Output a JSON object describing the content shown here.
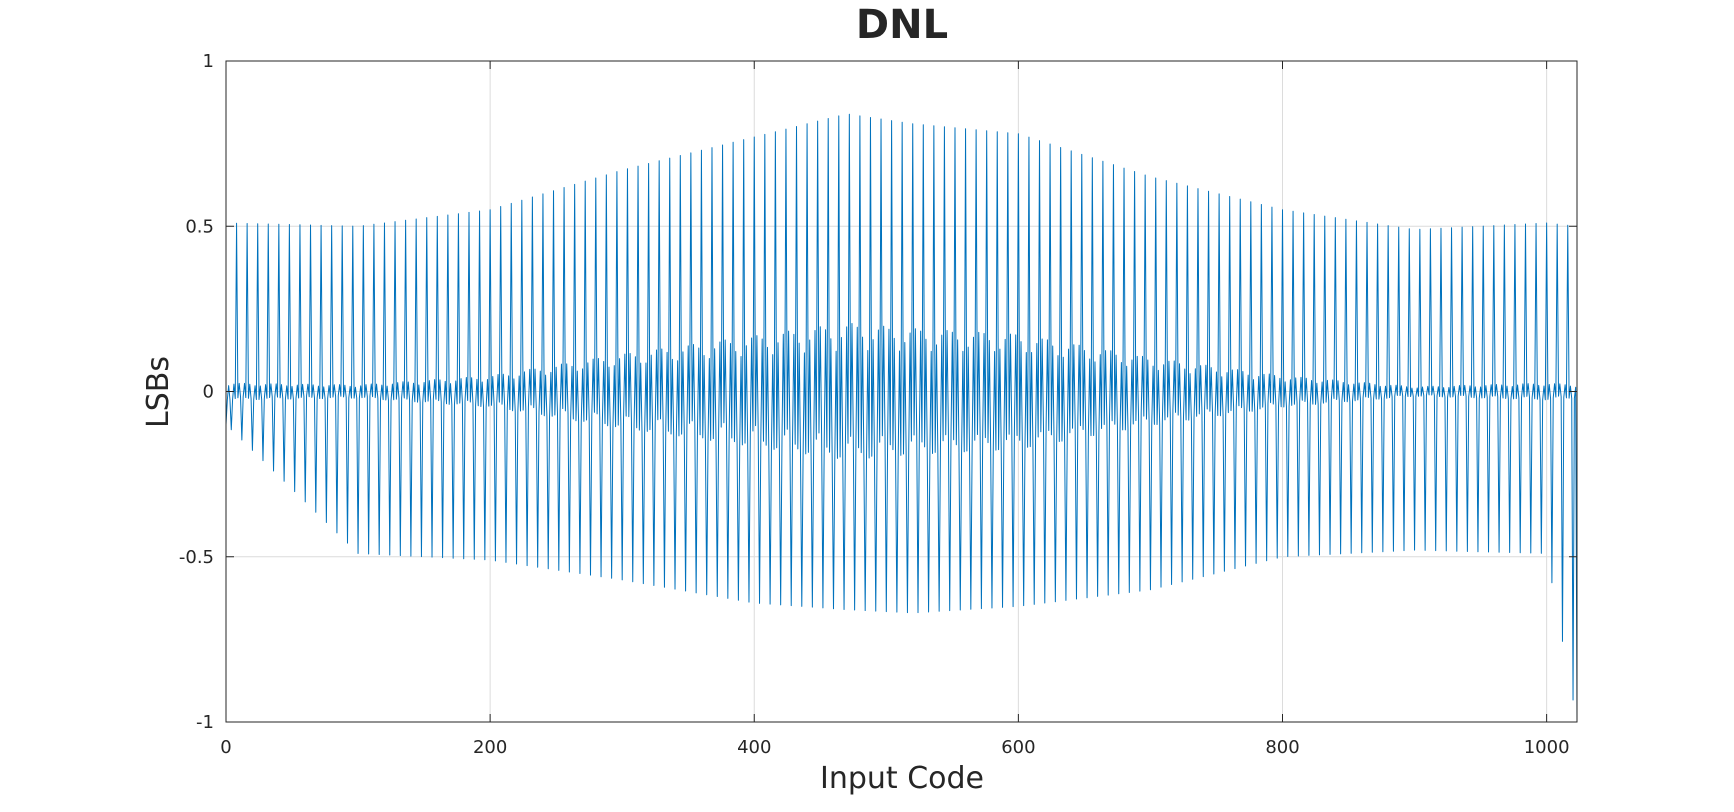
{
  "chart_data": {
    "type": "line",
    "title": "DNL",
    "xlabel": "Input Code",
    "ylabel": "LSBs",
    "xlim": [
      0,
      1023
    ],
    "ylim": [
      -1,
      1
    ],
    "xticks": [
      0,
      200,
      400,
      600,
      800,
      1000
    ],
    "xtick_labels": [
      "0",
      "200",
      "400",
      "600",
      "800",
      "1000"
    ],
    "yticks": [
      -1,
      -0.5,
      0,
      0.5,
      1
    ],
    "ytick_labels": [
      "-1",
      "-0.5",
      "0",
      "0.5",
      "1"
    ],
    "grid": true,
    "series_color": "#0072bd",
    "series": [
      {
        "points_count": 1024,
        "value_ranges": [
          {
            "x": 0,
            "min": -0.1,
            "max": 0.51
          },
          {
            "x": 100,
            "min": -0.49,
            "max": 0.5
          },
          {
            "x": 200,
            "min": -0.51,
            "max": 0.55
          },
          {
            "x": 300,
            "min": -0.57,
            "max": 0.67
          },
          {
            "x": 400,
            "min": -0.64,
            "max": 0.77
          },
          {
            "x": 470,
            "min": -0.66,
            "max": 0.84
          },
          {
            "x": 520,
            "min": -0.67,
            "max": 0.81
          },
          {
            "x": 600,
            "min": -0.65,
            "max": 0.78
          },
          {
            "x": 700,
            "min": -0.6,
            "max": 0.65
          },
          {
            "x": 800,
            "min": -0.5,
            "max": 0.55
          },
          {
            "x": 900,
            "min": -0.48,
            "max": 0.49
          },
          {
            "x": 1000,
            "min": -0.49,
            "max": 0.51
          },
          {
            "x": 1023,
            "min": -1,
            "max": 0.5
          }
        ]
      }
    ]
  }
}
